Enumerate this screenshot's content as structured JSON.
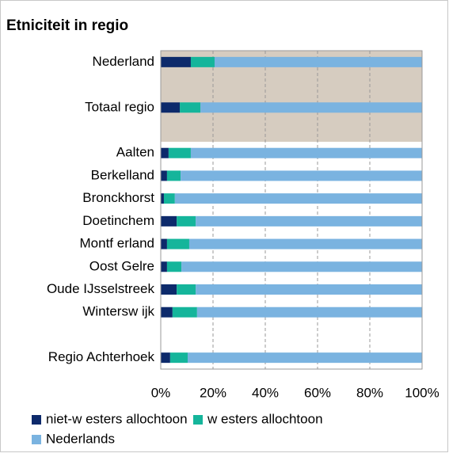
{
  "chart_data": {
    "type": "stacked_barh",
    "title": "Etniciteit in regio",
    "categories": [
      "Nederland",
      null,
      "Totaal regio",
      null,
      "Aalten",
      "Berkelland",
      "Bronckhorst",
      "Doetinchem",
      "Montf erland",
      "Oost Gelre",
      "Oude IJsselstreek",
      "Wintersw ijk",
      null,
      "Regio Achterhoek"
    ],
    "series": [
      {
        "name": "niet-w esters allochtoon",
        "color": "#0d2a6b",
        "values": [
          11.5,
          null,
          7.3,
          null,
          3.0,
          2.4,
          1.2,
          6.1,
          2.4,
          2.4,
          6.1,
          4.5,
          null,
          3.6
        ]
      },
      {
        "name": "w esters allochtoon",
        "color": "#15b59b",
        "values": [
          9.1,
          null,
          7.9,
          null,
          8.5,
          5.2,
          4.2,
          7.3,
          8.5,
          5.5,
          7.3,
          9.4,
          null,
          6.7
        ]
      },
      {
        "name": "Nederlands",
        "color": "#7ab3e0",
        "values": [
          79.4,
          null,
          84.8,
          null,
          88.5,
          92.4,
          94.6,
          86.6,
          89.1,
          92.1,
          86.6,
          86.1,
          null,
          89.7
        ]
      }
    ],
    "xlim": [
      0,
      100
    ],
    "xticks": [
      {
        "value": 0,
        "label": "0%"
      },
      {
        "value": 20,
        "label": "20%"
      },
      {
        "value": 40,
        "label": "40%"
      },
      {
        "value": 60,
        "label": "60%"
      },
      {
        "value": 80,
        "label": "80%"
      },
      {
        "value": 100,
        "label": "100%"
      }
    ],
    "grid": true
  }
}
